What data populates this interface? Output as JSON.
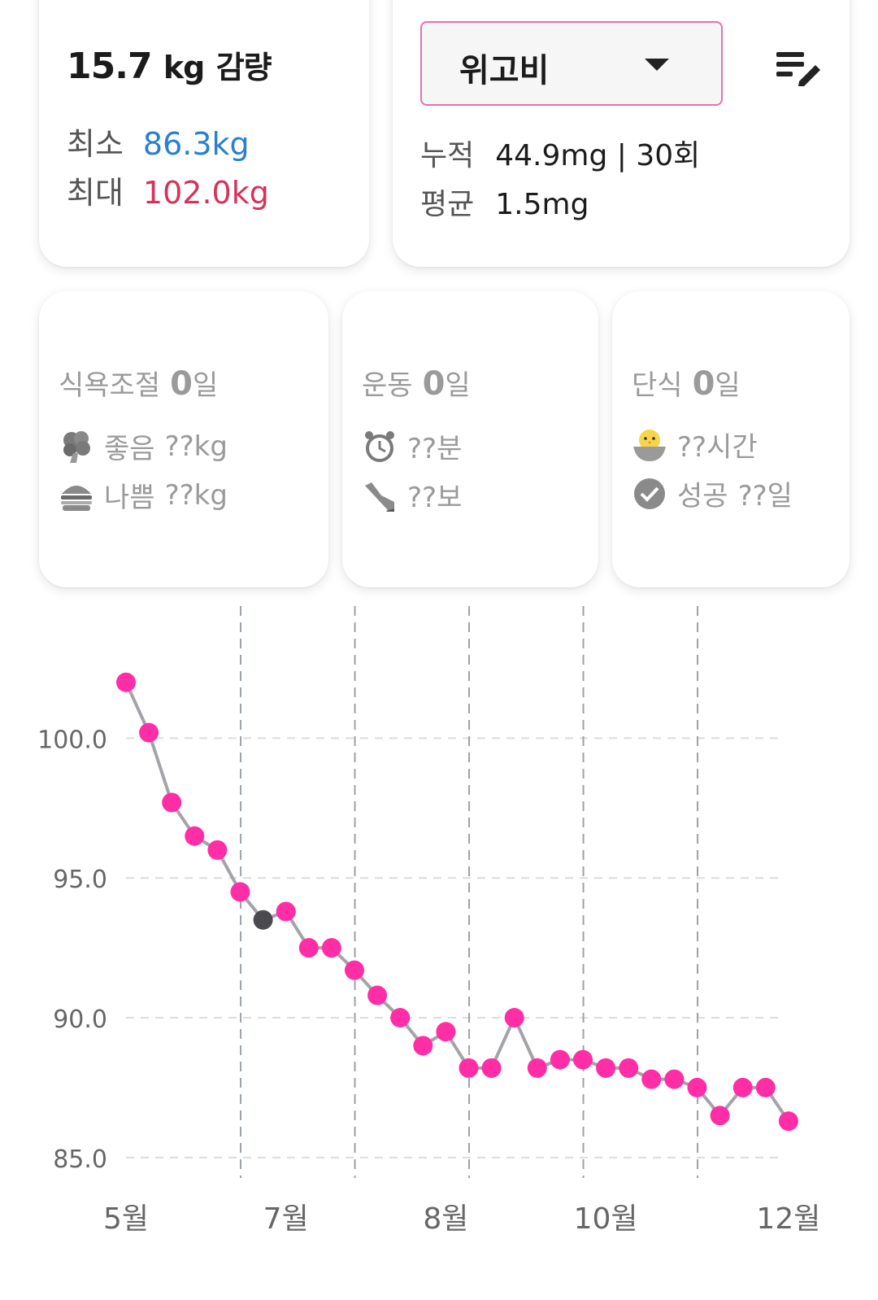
{
  "summary": {
    "loss_value": "15.7",
    "loss_unit": "kg",
    "loss_label": "감량",
    "min_label": "최소",
    "min_value": "86.3kg",
    "max_label": "최대",
    "max_value": "102.0kg"
  },
  "medication": {
    "selected": "위고비",
    "cumulative_label": "누적",
    "cumulative_value": "44.9mg | 30회",
    "average_label": "평균",
    "average_value": "1.5mg"
  },
  "stats": {
    "diet": {
      "title": "식욕조절",
      "count": "0",
      "unit": "일",
      "good_label": "좋음",
      "good_value": "??kg",
      "bad_label": "나쁨",
      "bad_value": "??kg"
    },
    "exercise": {
      "title": "운동",
      "count": "0",
      "unit": "일",
      "time_value": "??분",
      "steps_value": "??보"
    },
    "fasting": {
      "title": "단식",
      "count": "0",
      "unit": "일",
      "hours_value": "??시간",
      "success_label": "성공",
      "success_value": "??일"
    }
  },
  "colors": {
    "point": "#ff2ea6",
    "highlight_point": "#4a4a4f",
    "line": "#a3a3a8",
    "min_text": "#2a7fd0",
    "max_text": "#d8325b",
    "select_border": "#e86fb1"
  },
  "icons": [
    "broccoli-icon",
    "burger-icon",
    "alarm-clock-icon",
    "sneaker-icon",
    "chick-bowl-icon",
    "check-circle-icon",
    "edit-list-icon",
    "caret-down-icon"
  ],
  "chart_data": {
    "type": "line",
    "title": "",
    "xlabel": "",
    "ylabel": "",
    "ylim": [
      84.5,
      104
    ],
    "yticks": [
      "85.0",
      "90.0",
      "95.0",
      "100.0"
    ],
    "x_tick_labels": [
      {
        "label": "5월",
        "index": 0
      },
      {
        "label": "7월",
        "index": 7
      },
      {
        "label": "8월",
        "index": 14
      },
      {
        "label": "10월",
        "index": 21
      },
      {
        "label": "12월",
        "index": 29
      }
    ],
    "vertical_grid_after_index": [
      5,
      10,
      15,
      20,
      25
    ],
    "highlight_index": 6,
    "series": [
      {
        "values": [
          102.0,
          100.2,
          97.7,
          96.5,
          96.0,
          94.5,
          93.5,
          93.8,
          92.5,
          92.5,
          91.7,
          90.8,
          90.0,
          89.0,
          89.5,
          88.2,
          88.2,
          90.0,
          88.2,
          88.5,
          88.5,
          88.2,
          88.2,
          87.8,
          87.8,
          87.5,
          86.5,
          87.5,
          87.5,
          86.3
        ]
      }
    ]
  }
}
